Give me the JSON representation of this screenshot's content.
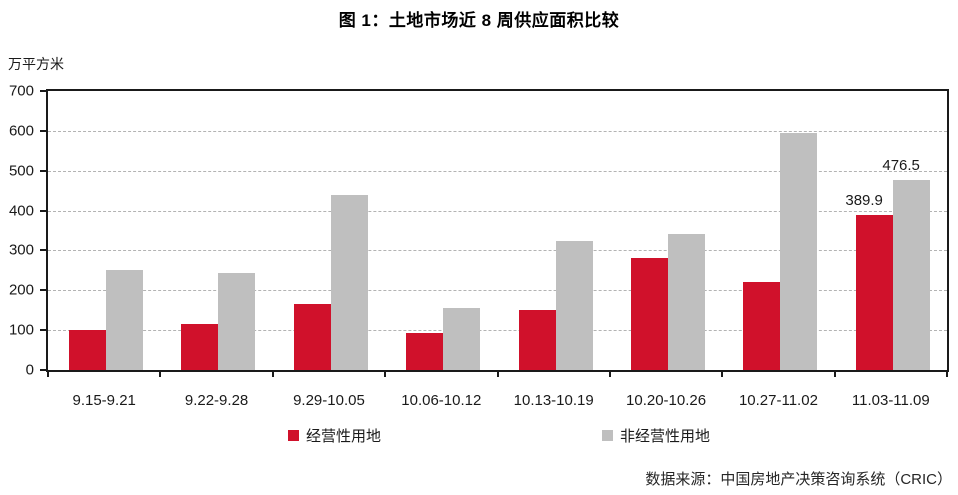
{
  "title": "图 1：土地市场近 8 周供应面积比较",
  "footer": "数据来源：中国房地产决策咨询系统（CRIC）",
  "colors": {
    "series1": "#d0112b",
    "series2": "#bfbfbf",
    "axis": "#1a1a1a",
    "gridline": "#b3b3b3"
  },
  "chart_data": {
    "type": "bar",
    "title": "图 1：土地市场近 8 周供应面积比较",
    "ylabel": "万平方米",
    "xlabel": "",
    "ylim": [
      0,
      700
    ],
    "ytick_step": 100,
    "grid": "horizontal-dashed",
    "legend_position": "bottom",
    "categories": [
      "9.15-9.21",
      "9.22-9.28",
      "9.29-10.05",
      "10.06-10.12",
      "10.13-10.19",
      "10.20-10.26",
      "10.27-11.02",
      "11.03-11.09"
    ],
    "series": [
      {
        "name": "经营性用地",
        "color": "#d0112b",
        "values": [
          100,
          115,
          165,
          93,
          151,
          282,
          220,
          389.9
        ],
        "value_labels": [
          null,
          null,
          null,
          null,
          null,
          null,
          null,
          "389.9"
        ]
      },
      {
        "name": "非经营性用地",
        "color": "#bfbfbf",
        "values": [
          250,
          243,
          438,
          156,
          324,
          342,
          595,
          476.5
        ],
        "value_labels": [
          null,
          null,
          null,
          null,
          null,
          null,
          null,
          "476.5"
        ]
      }
    ]
  }
}
